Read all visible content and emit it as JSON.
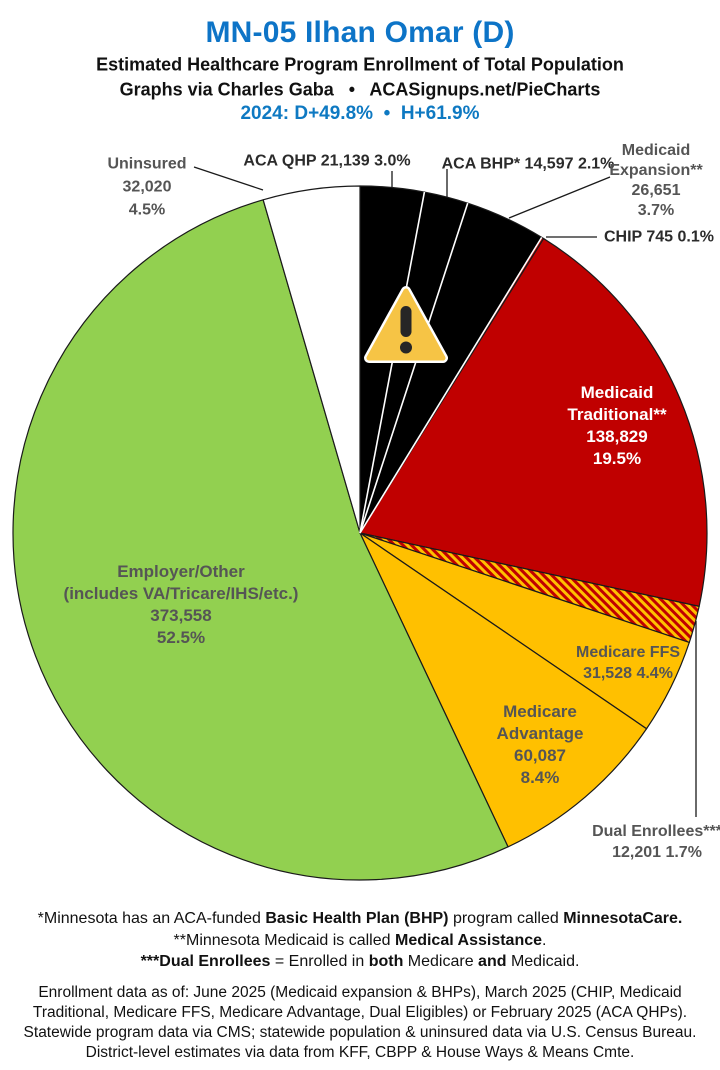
{
  "header": {
    "title": "MN-05 Ilhan Omar (D)",
    "subtitle": "Estimated Healthcare Program Enrollment of Total Population",
    "byline": "Graphs via Charles Gaba   •   ACASignups.net/PieCharts",
    "partisan": "2024: D+49.8%  •  H+61.9%"
  },
  "colors": {
    "title_blue": "#0d74c7",
    "partisan_blue": "#0e79c2",
    "medicaid_red": "#C00000",
    "medicare_gold": "#FFC000",
    "employer_green": "#92D050",
    "aca_black": "#000000",
    "uninsured_white": "#FFFFFF",
    "gray_label": "#555555"
  },
  "chart_data": {
    "type": "pie",
    "direction": "clockwise",
    "start_angle_deg": 0,
    "legend_position": "labels-on-and-around-pie",
    "white_separator_after": [
      0,
      1,
      2
    ],
    "slices": [
      {
        "label": "ACA QHP",
        "value": 21139,
        "pct": "3.0%",
        "color": "#000000"
      },
      {
        "label": "ACA BHP*",
        "value": 14597,
        "pct": "2.1%",
        "color": "#000000"
      },
      {
        "label": "Medicaid Expansion**",
        "value": 26651,
        "pct": "3.7%",
        "color": "#000000"
      },
      {
        "label": "CHIP",
        "value": 745,
        "pct": "0.1%",
        "color": "#C00000"
      },
      {
        "label": "Medicaid Traditional**",
        "value": 138829,
        "pct": "19.5%",
        "color": "#C00000"
      },
      {
        "label": "Dual Enrollees***",
        "value": 12201,
        "pct": "1.7%",
        "color": "hatch",
        "hatch_colors": [
          "#C00000",
          "#FFC000"
        ]
      },
      {
        "label": "Medicare FFS",
        "value": 31528,
        "pct": "4.4%",
        "color": "#FFC000"
      },
      {
        "label": "Medicare Advantage",
        "value": 60087,
        "pct": "8.4%",
        "color": "#FFC000"
      },
      {
        "label": "Employer/Other (includes VA/Tricare/IHS/etc.)",
        "value": 373558,
        "pct": "52.5%",
        "color": "#92D050"
      },
      {
        "label": "Uninsured",
        "value": 32020,
        "pct": "4.5%",
        "color": "#FFFFFF"
      }
    ]
  },
  "labels": {
    "uninsured": {
      "lines": [
        "Uninsured",
        "32,020",
        "4.5%"
      ]
    },
    "aca_qhp": {
      "text": "ACA QHP 21,139 3.0%"
    },
    "aca_bhp": {
      "text": "ACA BHP* 14,597 2.1%"
    },
    "medicaid_expansion": {
      "lines": [
        "Medicaid",
        "Expansion**",
        "26,651",
        "3.7%"
      ]
    },
    "chip": {
      "text": "CHIP 745 0.1%"
    },
    "medicaid_traditional": {
      "lines": [
        "Medicaid",
        "Traditional**",
        "138,829",
        "19.5%"
      ]
    },
    "medicare_ffs": {
      "lines": [
        "Medicare FFS",
        "31,528 4.4%"
      ]
    },
    "medicare_advantage": {
      "lines": [
        "Medicare",
        "Advantage",
        "60,087",
        "8.4%"
      ]
    },
    "dual_enrollees": {
      "lines": [
        "Dual Enrollees***",
        "12,201 1.7%"
      ]
    },
    "employer": {
      "lines": [
        "Employer/Other",
        "(includes VA/Tricare/IHS/etc.)",
        "373,558",
        "52.5%"
      ]
    }
  },
  "warning_icon": {
    "name": "warning-triangle",
    "fill": "#F6C445",
    "border": "#FFFFFF",
    "glyph": "#262626"
  },
  "footnotes": {
    "lines": [
      [
        {
          "t": "*Minnesota has an ACA-funded ",
          "b": false
        },
        {
          "t": "Basic Health Plan (BHP)",
          "b": true
        },
        {
          "t": " program called ",
          "b": false
        },
        {
          "t": "MinnesotaCare.",
          "b": true
        }
      ],
      [
        {
          "t": "**Minnesota Medicaid is called ",
          "b": false
        },
        {
          "t": "Medical Assistance",
          "b": true
        },
        {
          "t": ".",
          "b": false
        }
      ],
      [
        {
          "t": "***Dual Enrollees",
          "b": true
        },
        {
          "t": " = Enrolled in ",
          "b": false
        },
        {
          "t": "both",
          "b": true
        },
        {
          "t": " Medicare ",
          "b": false
        },
        {
          "t": "and",
          "b": true
        },
        {
          "t": " Medicaid.",
          "b": false
        }
      ]
    ]
  },
  "source_note": {
    "lines": [
      "Enrollment data as of: June 2025 (Medicaid expansion & BHPs), March 2025 (CHIP, Medicaid",
      "Traditional, Medicare FFS, Medicare Advantage, Dual Eligibles) or February 2025 (ACA QHPs).",
      "Statewide program data via CMS; statewide population & uninsured data via U.S. Census Bureau.",
      "District-level estimates via data from KFF, CBPP & House Ways & Means Cmte."
    ]
  }
}
